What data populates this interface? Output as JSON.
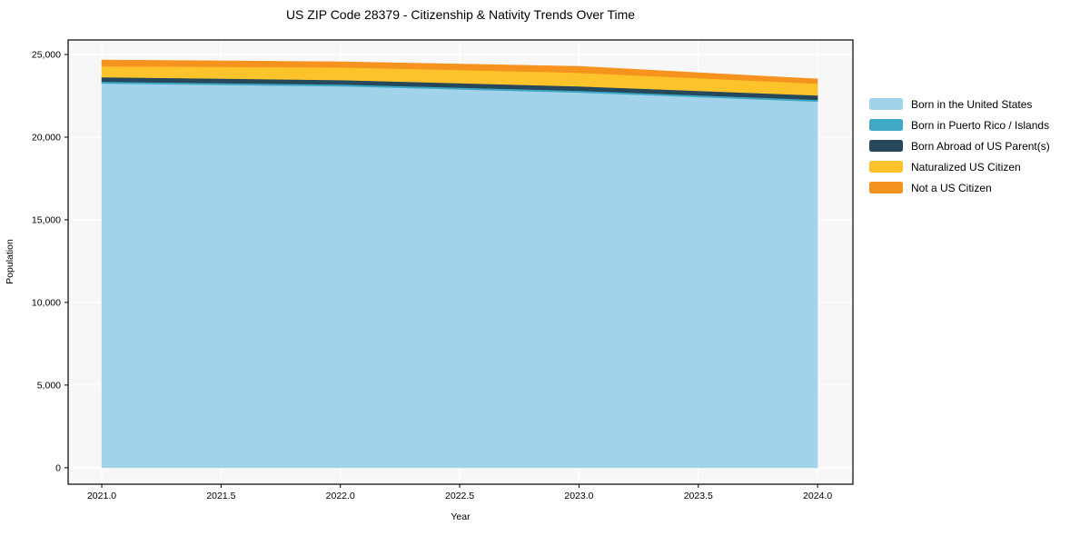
{
  "title": "US ZIP Code 28379 - Citizenship & Nativity Trends Over Time",
  "chart_data": {
    "type": "area",
    "stacked": true,
    "title": "US ZIP Code 28379 - Citizenship & Nativity Trends Over Time",
    "xlabel": "Year",
    "ylabel": "Population",
    "x": [
      2021,
      2022,
      2023,
      2024
    ],
    "series": [
      {
        "name": "Born in the United States",
        "color": "#A3D3EA",
        "values": [
          23250,
          23080,
          22700,
          22150
        ]
      },
      {
        "name": "Born in Puerto Rico / Islands",
        "color": "#3FA9C5",
        "values": [
          110,
          110,
          110,
          110
        ]
      },
      {
        "name": "Born Abroad of US Parent(s)",
        "color": "#26485C",
        "values": [
          270,
          270,
          270,
          270
        ]
      },
      {
        "name": "Naturalized US Citizen",
        "color": "#FDC32B",
        "values": [
          660,
          770,
          820,
          715
        ]
      },
      {
        "name": "Not a US Citizen",
        "color": "#F6921E",
        "values": [
          380,
          330,
          385,
          275
        ]
      }
    ],
    "xlim": [
      2020.859,
      2024.148
    ],
    "ylim": [
      -1000,
      25880
    ],
    "x_ticks": [
      {
        "v": 2021.0,
        "label": "2021.0"
      },
      {
        "v": 2021.5,
        "label": "2021.5"
      },
      {
        "v": 2022.0,
        "label": "2022.0"
      },
      {
        "v": 2022.5,
        "label": "2022.5"
      },
      {
        "v": 2023.0,
        "label": "2023.0"
      },
      {
        "v": 2023.5,
        "label": "2023.5"
      },
      {
        "v": 2024.0,
        "label": "2024.0"
      }
    ],
    "y_ticks": [
      {
        "v": 0,
        "label": "0"
      },
      {
        "v": 5000,
        "label": "5,000"
      },
      {
        "v": 10000,
        "label": "10,000"
      },
      {
        "v": 15000,
        "label": "15,000"
      },
      {
        "v": 20000,
        "label": "20,000"
      },
      {
        "v": 25000,
        "label": "25,000"
      }
    ],
    "grid": true,
    "legend_position": "right",
    "plot_bg": "#f7f7f7",
    "grid_color": "#ffffff",
    "spine_color": "#000000"
  }
}
